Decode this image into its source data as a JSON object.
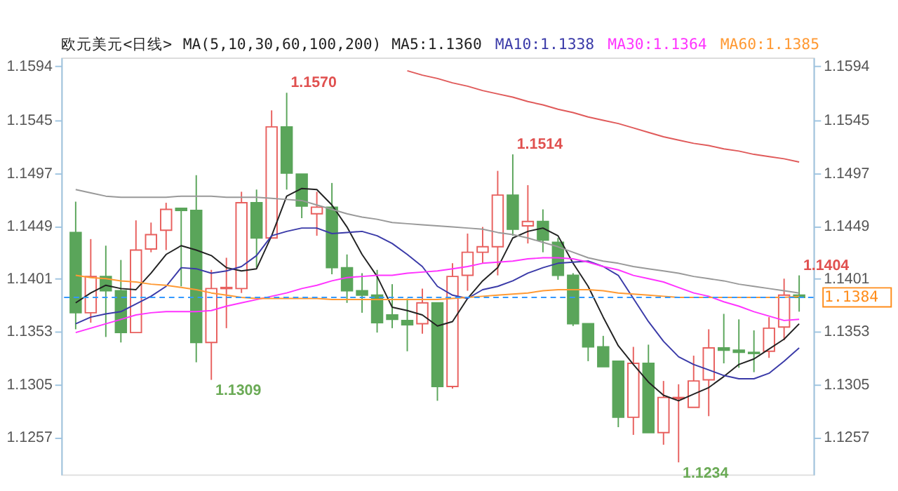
{
  "chart_data": {
    "type": "candlestick",
    "title": "欧元美元<日线>",
    "subtitle": "MA(5,10,30,60,100,200)",
    "categories": [
      null,
      null,
      null,
      null,
      null,
      null,
      null,
      null,
      null,
      null,
      null,
      null,
      null,
      null,
      null,
      null,
      null,
      null,
      null,
      null,
      null,
      null,
      null,
      null,
      null,
      null,
      null,
      null,
      null,
      null,
      null,
      null,
      null,
      null,
      null,
      null,
      null,
      null,
      null,
      null,
      null,
      null,
      null,
      null,
      null,
      null,
      null,
      null,
      null
    ],
    "ohlc": [
      [
        1.1443,
        1.1471,
        1.1355,
        1.137
      ],
      [
        1.137,
        1.1437,
        1.1361,
        1.1403
      ],
      [
        1.1403,
        1.1431,
        1.1348,
        1.139
      ],
      [
        1.139,
        1.1418,
        1.1343,
        1.1352
      ],
      [
        1.1352,
        1.1454,
        1.1352,
        1.1427
      ],
      [
        1.1428,
        1.1452,
        1.1425,
        1.1441
      ],
      [
        1.1445,
        1.147,
        1.1427,
        1.1464
      ],
      [
        1.1465,
        1.1465,
        1.1394,
        1.1463
      ],
      [
        1.1463,
        1.1495,
        1.1325,
        1.1343
      ],
      [
        1.1343,
        1.1409,
        1.1309,
        1.1392
      ],
      [
        1.1392,
        1.142,
        1.1356,
        1.1393
      ],
      [
        1.1392,
        1.148,
        1.1388,
        1.147
      ],
      [
        1.147,
        1.1482,
        1.1411,
        1.1438
      ],
      [
        1.1438,
        1.1554,
        1.1438,
        1.1539
      ],
      [
        1.1539,
        1.157,
        1.1482,
        1.1497
      ],
      [
        1.1496,
        1.1496,
        1.1456,
        1.1467
      ],
      [
        1.146,
        1.148,
        1.144,
        1.1466
      ],
      [
        1.1466,
        1.1488,
        1.1405,
        1.1411
      ],
      [
        1.1411,
        1.1423,
        1.1379,
        1.139
      ],
      [
        1.139,
        1.1406,
        1.137,
        1.1386
      ],
      [
        1.1386,
        1.1409,
        1.1352,
        1.1361
      ],
      [
        1.1368,
        1.1396,
        1.1356,
        1.1364
      ],
      [
        1.1363,
        1.1383,
        1.1335,
        1.1359
      ],
      [
        1.136,
        1.1392,
        1.1351,
        1.1379
      ],
      [
        1.1379,
        1.1379,
        1.129,
        1.1303
      ],
      [
        1.1303,
        1.1415,
        1.1301,
        1.1403
      ],
      [
        1.1404,
        1.1442,
        1.139,
        1.1425
      ],
      [
        1.1425,
        1.1448,
        1.1415,
        1.143
      ],
      [
        1.143,
        1.1499,
        1.1404,
        1.1477
      ],
      [
        1.1477,
        1.1514,
        1.144,
        1.1446
      ],
      [
        1.1449,
        1.1486,
        1.1433,
        1.1453
      ],
      [
        1.1453,
        1.1464,
        1.1425,
        1.1436
      ],
      [
        1.1434,
        1.1438,
        1.14,
        1.1404
      ],
      [
        1.1404,
        1.1406,
        1.1358,
        1.136
      ],
      [
        1.136,
        1.136,
        1.1326,
        1.1339
      ],
      [
        1.1339,
        1.1349,
        1.1321,
        1.1321
      ],
      [
        1.1326,
        1.1326,
        1.1266,
        1.1275
      ],
      [
        1.1275,
        1.1339,
        1.1259,
        1.1324
      ],
      [
        1.1324,
        1.1341,
        1.1261,
        1.1261
      ],
      [
        1.1261,
        1.1308,
        1.125,
        1.1293
      ],
      [
        1.1292,
        1.1305,
        1.1234,
        1.1293
      ],
      [
        1.1284,
        1.1331,
        1.1284,
        1.1308
      ],
      [
        1.1309,
        1.1355,
        1.1276,
        1.1338
      ],
      [
        1.1338,
        1.1369,
        1.1324,
        1.1336
      ],
      [
        1.1336,
        1.1364,
        1.132,
        1.1334
      ],
      [
        1.1334,
        1.1354,
        1.1316,
        1.1333
      ],
      [
        1.1335,
        1.1366,
        1.1329,
        1.1356
      ],
      [
        1.1357,
        1.1401,
        1.1345,
        1.1386
      ],
      [
        1.1386,
        1.1404,
        1.1371,
        1.1384
      ]
    ],
    "colors": [
      "#5aa55a",
      "#e8605e",
      "#5aa55a",
      "#5aa55a",
      "#e8605e",
      "#e8605e",
      "#e8605e",
      "#5aa55a",
      "#5aa55a",
      "#e8605e",
      "#e8605e",
      "#e8605e",
      "#5aa55a",
      "#e8605e",
      "#5aa55a",
      "#5aa55a",
      "#e8605e",
      "#5aa55a",
      "#5aa55a",
      "#5aa55a",
      "#5aa55a",
      "#5aa55a",
      "#5aa55a",
      "#e8605e",
      "#5aa55a",
      "#e8605e",
      "#e8605e",
      "#e8605e",
      "#e8605e",
      "#5aa55a",
      "#e8605e",
      "#5aa55a",
      "#5aa55a",
      "#5aa55a",
      "#5aa55a",
      "#5aa55a",
      "#5aa55a",
      "#e8605e",
      "#5aa55a",
      "#e8605e",
      "#e8605e",
      "#e8605e",
      "#e8605e",
      "#5aa55a",
      "#5aa55a",
      "#5aa55a",
      "#e8605e",
      "#e8605e",
      "#5aa55a"
    ],
    "series": [
      {
        "type": "line",
        "name": "MA5:1.1360",
        "color": "#222222",
        "values": [
          1.1379,
          1.1388,
          1.1395,
          1.1392,
          1.1391,
          1.1406,
          1.1423,
          1.1431,
          1.1427,
          1.1422,
          1.1411,
          1.1408,
          1.141,
          1.144,
          1.1476,
          1.1483,
          1.1482,
          1.1468,
          1.1448,
          1.1423,
          1.1403,
          1.1375,
          1.1372,
          1.1368,
          1.1358,
          1.1362,
          1.1383,
          1.1399,
          1.1411,
          1.1438,
          1.1444,
          1.1447,
          1.144,
          1.1415,
          1.1394,
          1.1366,
          1.134,
          1.1323,
          1.1307,
          1.1295,
          1.129,
          1.1296,
          1.1302,
          1.1312,
          1.1323,
          1.1328,
          1.1337,
          1.1346,
          1.136
        ]
      },
      {
        "type": "line",
        "name": "MA10:1.1338",
        "color": "#3a3aa8",
        "values": [
          1.136,
          1.1366,
          1.1369,
          1.1371,
          1.1378,
          1.1385,
          1.1394,
          1.1411,
          1.141,
          1.1406,
          1.1408,
          1.1412,
          1.1422,
          1.144,
          1.1444,
          1.1447,
          1.1447,
          1.1442,
          1.1443,
          1.1444,
          1.144,
          1.1433,
          1.1423,
          1.1412,
          1.1394,
          1.1386,
          1.1383,
          1.1391,
          1.1394,
          1.1399,
          1.1406,
          1.1411,
          1.1415,
          1.1416,
          1.1417,
          1.1412,
          1.1404,
          1.1383,
          1.1362,
          1.1344,
          1.133,
          1.1323,
          1.1318,
          1.1313,
          1.131,
          1.131,
          1.1315,
          1.1326,
          1.1338
        ]
      },
      {
        "type": "line",
        "name": "MA30:1.1364",
        "color": "#ff33ff",
        "values": [
          1.1352,
          1.1356,
          1.136,
          1.1364,
          1.1368,
          1.137,
          1.1371,
          1.1371,
          1.1371,
          1.1372,
          1.1376,
          1.1379,
          1.1382,
          1.1385,
          1.1388,
          1.1392,
          1.1395,
          1.1399,
          1.1402,
          1.1403,
          1.1404,
          1.1404,
          1.1406,
          1.1407,
          1.1408,
          1.141,
          1.1412,
          1.1415,
          1.1416,
          1.1417,
          1.1419,
          1.142,
          1.142,
          1.1419,
          1.1416,
          1.1412,
          1.1409,
          1.1404,
          1.1401,
          1.1398,
          1.1393,
          1.1388,
          1.1385,
          1.138,
          1.1376,
          1.1371,
          1.1367,
          1.1363,
          1.1364
        ]
      },
      {
        "type": "line",
        "name": "MA60:1.1385",
        "color": "#ff9933",
        "values": [
          1.1404,
          1.1402,
          1.1401,
          1.1399,
          1.1398,
          1.1396,
          1.1395,
          1.1393,
          1.1391,
          1.1388,
          1.1386,
          1.1384,
          1.1383,
          1.1383,
          1.1383,
          1.1383,
          1.1383,
          1.1382,
          1.1382,
          1.1382,
          1.1382,
          1.1382,
          1.1382,
          1.1382,
          1.1382,
          1.1383,
          1.1384,
          1.1385,
          1.1386,
          1.1387,
          1.1388,
          1.139,
          1.1391,
          1.1391,
          1.1391,
          1.139,
          1.1388,
          1.1387,
          1.1386,
          1.1385,
          1.1384,
          1.1384,
          1.1384,
          1.1384,
          1.1384,
          1.1384,
          1.1384,
          1.1384,
          1.1385
        ]
      },
      {
        "type": "line",
        "color": "#999999",
        "values": [
          1.1482,
          1.1479,
          1.1476,
          1.1475,
          1.1475,
          1.1475,
          1.1475,
          1.1476,
          1.1476,
          1.1476,
          1.1475,
          1.1475,
          1.1475,
          1.1474,
          1.1473,
          1.1472,
          1.1468,
          1.1464,
          1.146,
          1.1457,
          1.1455,
          1.1452,
          1.1451,
          1.145,
          1.1449,
          1.1448,
          1.1447,
          1.1446,
          1.1443,
          1.1441,
          1.1438,
          1.1434,
          1.143,
          1.1425,
          1.142,
          1.1417,
          1.1415,
          1.1412,
          1.141,
          1.1408,
          1.1406,
          1.1403,
          1.1401,
          1.1399,
          1.1396,
          1.1394,
          1.1392,
          1.139,
          1.1388
        ]
      },
      {
        "type": "line",
        "color": "#e05a5a",
        "values": [
          null,
          null,
          null,
          null,
          null,
          null,
          null,
          null,
          null,
          null,
          null,
          null,
          null,
          null,
          null,
          null,
          null,
          null,
          null,
          null,
          null,
          null,
          1.159,
          1.1586,
          1.1583,
          1.1579,
          1.1576,
          1.1572,
          1.1569,
          1.1566,
          1.1562,
          1.1559,
          1.1555,
          1.1552,
          1.1548,
          1.1545,
          1.1542,
          1.1538,
          1.1534,
          1.153,
          1.1527,
          1.1524,
          1.1522,
          1.1519,
          1.1517,
          1.1514,
          1.1512,
          1.151,
          1.1507
        ]
      }
    ],
    "ylim": [
      1.1223,
      1.1602
    ],
    "yticks": [
      1.1594,
      1.1545,
      1.1497,
      1.1449,
      1.1401,
      1.1353,
      1.1305,
      1.1257
    ],
    "y2lim": [
      1.1223,
      1.1602
    ],
    "y2ticks": [
      1.1594,
      1.1545,
      1.1497,
      1.1449,
      1.1401,
      1.1353,
      1.1305,
      1.1257
    ],
    "ref_lines": [
      {
        "axis": "y",
        "value": 1.1384,
        "label": "1.1384",
        "color": "#3399ff",
        "line_style": "dashed"
      }
    ],
    "annotations": [
      "1.1570",
      "1.1514",
      "1.1309",
      "1.1234",
      "1.1404"
    ],
    "legend": "top",
    "grid": false,
    "tick_labels": "y",
    "line_style": "solid"
  }
}
